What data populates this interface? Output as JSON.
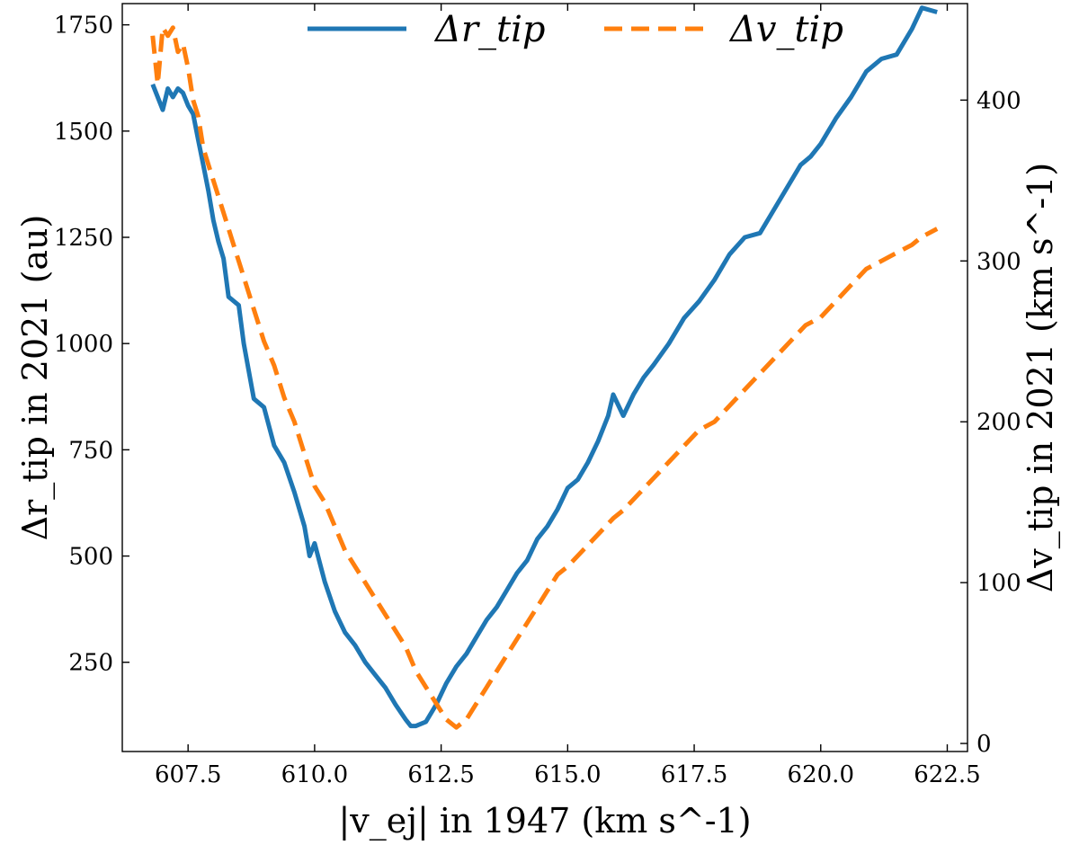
{
  "chart_data": {
    "type": "line",
    "xlabel": "|v_ej| in 1947 (km s^-1)",
    "ylabel": "Δr_tip in 2021 (au)",
    "y2label": "Δv_tip in 2021 (km s^-1)",
    "xlim": [
      606.2,
      622.9
    ],
    "ylim": [
      40,
      1800
    ],
    "y2lim": [
      -5,
      460
    ],
    "x_ticks": [
      607.5,
      610.0,
      612.5,
      615.0,
      617.5,
      620.0,
      622.5
    ],
    "x_tick_labels": [
      "607.5",
      "610.0",
      "612.5",
      "615.0",
      "617.5",
      "620.0",
      "622.5"
    ],
    "y_ticks": [
      250,
      500,
      750,
      1000,
      1250,
      1500,
      1750
    ],
    "y_tick_labels": [
      "250",
      "500",
      "750",
      "1000",
      "1250",
      "1500",
      "1750"
    ],
    "y2_ticks": [
      0,
      100,
      200,
      300,
      400
    ],
    "y2_tick_labels": [
      "0",
      "100",
      "200",
      "300",
      "400"
    ],
    "legend_position": "top-center",
    "grid": false,
    "series": [
      {
        "name": "Δr_tip",
        "axis": "left",
        "color": "#1f77b4",
        "style": "solid",
        "x": [
          606.8,
          607.0,
          607.1,
          607.2,
          607.3,
          607.4,
          607.5,
          607.6,
          607.7,
          607.8,
          607.9,
          608.0,
          608.1,
          608.2,
          608.3,
          608.5,
          608.6,
          608.8,
          609.0,
          609.2,
          609.4,
          609.6,
          609.8,
          609.9,
          610.0,
          610.2,
          610.4,
          610.6,
          610.8,
          611.0,
          611.2,
          611.4,
          611.6,
          611.8,
          611.9,
          612.0,
          612.2,
          612.4,
          612.6,
          612.8,
          613.0,
          613.2,
          613.4,
          613.6,
          613.8,
          614.0,
          614.2,
          614.4,
          614.6,
          614.8,
          615.0,
          615.2,
          615.4,
          615.6,
          615.8,
          615.9,
          616.1,
          616.3,
          616.5,
          616.7,
          617.0,
          617.3,
          617.6,
          617.9,
          618.2,
          618.5,
          618.8,
          619.0,
          619.3,
          619.6,
          619.8,
          620.0,
          620.3,
          620.6,
          620.9,
          621.2,
          621.5,
          621.8,
          622.0,
          622.3
        ],
        "values": [
          1610,
          1550,
          1600,
          1580,
          1600,
          1590,
          1560,
          1540,
          1480,
          1420,
          1360,
          1290,
          1240,
          1200,
          1110,
          1090,
          1000,
          870,
          850,
          760,
          720,
          650,
          570,
          500,
          530,
          440,
          370,
          320,
          290,
          250,
          220,
          190,
          150,
          115,
          100,
          100,
          110,
          150,
          200,
          240,
          270,
          310,
          350,
          380,
          420,
          460,
          490,
          540,
          570,
          610,
          660,
          680,
          720,
          770,
          830,
          880,
          830,
          880,
          920,
          950,
          1000,
          1060,
          1100,
          1150,
          1210,
          1250,
          1260,
          1300,
          1360,
          1420,
          1440,
          1470,
          1530,
          1580,
          1640,
          1670,
          1680,
          1740,
          1790,
          1780
        ]
      },
      {
        "name": "Δv_tip",
        "axis": "right",
        "color": "#ff7f0e",
        "style": "dashed",
        "x": [
          606.8,
          606.9,
          607.0,
          607.1,
          607.2,
          607.3,
          607.4,
          607.5,
          607.6,
          607.7,
          607.8,
          608.0,
          608.2,
          608.4,
          608.6,
          608.8,
          609.0,
          609.2,
          609.4,
          609.6,
          609.8,
          610.0,
          610.2,
          610.4,
          610.6,
          610.8,
          611.0,
          611.2,
          611.4,
          611.6,
          611.8,
          612.0,
          612.2,
          612.4,
          612.6,
          612.8,
          613.0,
          613.2,
          613.4,
          613.6,
          613.8,
          614.0,
          614.2,
          614.4,
          614.6,
          614.8,
          615.0,
          615.3,
          615.6,
          615.9,
          616.1,
          616.4,
          616.7,
          617.0,
          617.3,
          617.6,
          617.9,
          618.2,
          618.5,
          618.8,
          619.1,
          619.4,
          619.7,
          620.0,
          620.3,
          620.6,
          620.9,
          621.2,
          621.5,
          621.8,
          622.0,
          622.3
        ],
        "values": [
          440,
          410,
          445,
          440,
          445,
          430,
          435,
          420,
          400,
          390,
          370,
          350,
          330,
          310,
          290,
          270,
          250,
          235,
          215,
          200,
          180,
          160,
          150,
          135,
          120,
          110,
          100,
          90,
          80,
          70,
          60,
          45,
          35,
          25,
          15,
          10,
          15,
          25,
          35,
          45,
          55,
          65,
          75,
          85,
          95,
          105,
          110,
          120,
          130,
          140,
          145,
          155,
          165,
          175,
          185,
          195,
          200,
          210,
          220,
          230,
          240,
          250,
          260,
          265,
          275,
          285,
          295,
          300,
          305,
          310,
          315,
          320
        ]
      }
    ]
  }
}
